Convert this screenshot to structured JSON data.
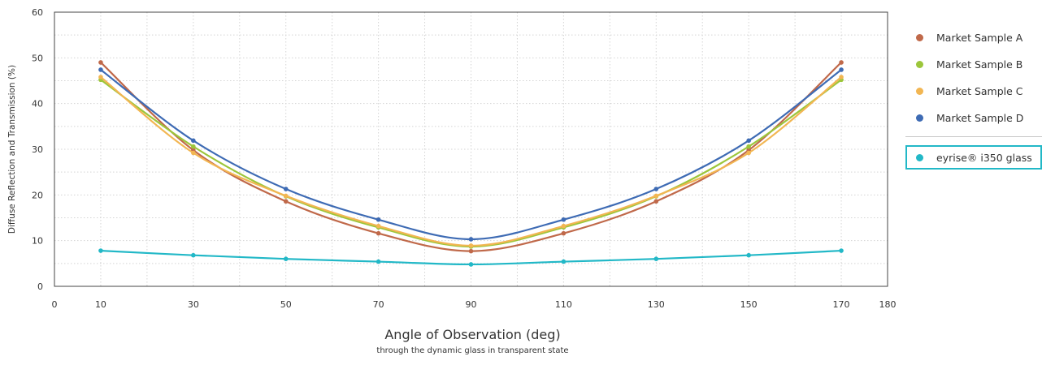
{
  "chart_data": {
    "type": "line",
    "xlabel": "Angle of Observation (deg)",
    "xlabel_sub": "through the dynamic glass in transparent state",
    "ylabel": "Diffuse Reflection and Transmission (%)",
    "xlim": [
      0,
      180
    ],
    "ylim": [
      0,
      60
    ],
    "xticks": [
      0,
      10,
      30,
      50,
      70,
      90,
      110,
      130,
      150,
      170,
      180
    ],
    "yticks": [
      0,
      10,
      20,
      30,
      40,
      50,
      60
    ],
    "grid": true,
    "legend_position": "right",
    "x": [
      10,
      30,
      50,
      70,
      90,
      110,
      130,
      150,
      170
    ],
    "series": [
      {
        "name": "Market Sample A",
        "color": "#c0694a",
        "values": [
          49,
          29.8,
          18.6,
          11.6,
          7.7,
          11.6,
          18.6,
          29.8,
          49
        ]
      },
      {
        "name": "Market Sample B",
        "color": "#9cc63b",
        "values": [
          45.2,
          30.6,
          19.7,
          12.9,
          8.7,
          12.9,
          19.7,
          30.6,
          45.2
        ]
      },
      {
        "name": "Market Sample C",
        "color": "#f2b652",
        "values": [
          45.8,
          29.2,
          19.8,
          13.2,
          8.9,
          13.2,
          19.8,
          29.2,
          45.8
        ]
      },
      {
        "name": "Market Sample D",
        "color": "#3e6bb4",
        "values": [
          47.4,
          31.9,
          21.3,
          14.6,
          10.3,
          14.6,
          21.3,
          31.9,
          47.4
        ]
      },
      {
        "name": "eyrise® i350 glass",
        "color": "#22b8c7",
        "values": [
          7.8,
          6.8,
          6.0,
          5.4,
          4.8,
          5.4,
          6.0,
          6.8,
          7.8
        ]
      }
    ]
  }
}
